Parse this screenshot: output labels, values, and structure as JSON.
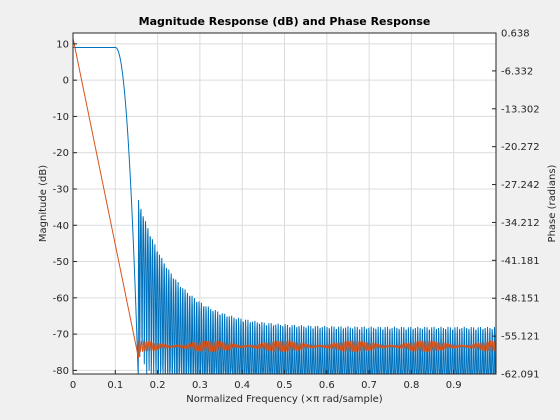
{
  "chart_data": {
    "type": "line",
    "title": "Magnitude Response (dB) and Phase Response",
    "xlabel": "Normalized Frequency (×π rad/sample)",
    "ylabel_left": "Magnitude (dB)",
    "ylabel_right": "Phase (radians)",
    "xlim": [
      0,
      1
    ],
    "ylim_left": [
      -81,
      13
    ],
    "ylim_right": [
      -62.091,
      0.638
    ],
    "grid": true,
    "x_ticks": [
      {
        "v": 0,
        "label": "0"
      },
      {
        "v": 0.1,
        "label": "0.1"
      },
      {
        "v": 0.2,
        "label": "0.2"
      },
      {
        "v": 0.3,
        "label": "0.3"
      },
      {
        "v": 0.4,
        "label": "0.4"
      },
      {
        "v": 0.5,
        "label": "0.5"
      },
      {
        "v": 0.6,
        "label": "0.6"
      },
      {
        "v": 0.7,
        "label": "0.7"
      },
      {
        "v": 0.8,
        "label": "0.8"
      },
      {
        "v": 0.9,
        "label": "0.9"
      }
    ],
    "y_ticks_left": [
      {
        "v": 10,
        "label": "10"
      },
      {
        "v": 0,
        "label": "0"
      },
      {
        "v": -10,
        "label": "-10"
      },
      {
        "v": -20,
        "label": "-20"
      },
      {
        "v": -30,
        "label": "-30"
      },
      {
        "v": -40,
        "label": "-40"
      },
      {
        "v": -50,
        "label": "-50"
      },
      {
        "v": -60,
        "label": "-60"
      },
      {
        "v": -70,
        "label": "-70"
      },
      {
        "v": -80,
        "label": "-80"
      }
    ],
    "y_ticks_right": [
      {
        "v": 0.638,
        "label": "0.638"
      },
      {
        "v": -6.332,
        "label": "-6.332"
      },
      {
        "v": -13.302,
        "label": "-13.302"
      },
      {
        "v": -20.272,
        "label": "-20.272"
      },
      {
        "v": -27.242,
        "label": "-27.242"
      },
      {
        "v": -34.212,
        "label": "-34.212"
      },
      {
        "v": -41.181,
        "label": "-41.181"
      },
      {
        "v": -48.151,
        "label": "-48.151"
      },
      {
        "v": -55.121,
        "label": "-55.121"
      },
      {
        "v": -62.091,
        "label": "-62.091"
      }
    ],
    "series": [
      {
        "axis": "left",
        "color": "#0072bd",
        "passband_db": 9,
        "passband_edge": 0.1,
        "stopband_edge": 0.155,
        "first_sidelobe_db": -33,
        "floor_db": -68,
        "ripple_period": 0.0055
      },
      {
        "axis": "right",
        "color": "#d95319",
        "start_rad": -0.3,
        "end_x": 0.155,
        "end_rad": -59.2,
        "stop_mean_rad": -57.0,
        "stop_ripple_rad": 1.0
      }
    ]
  }
}
